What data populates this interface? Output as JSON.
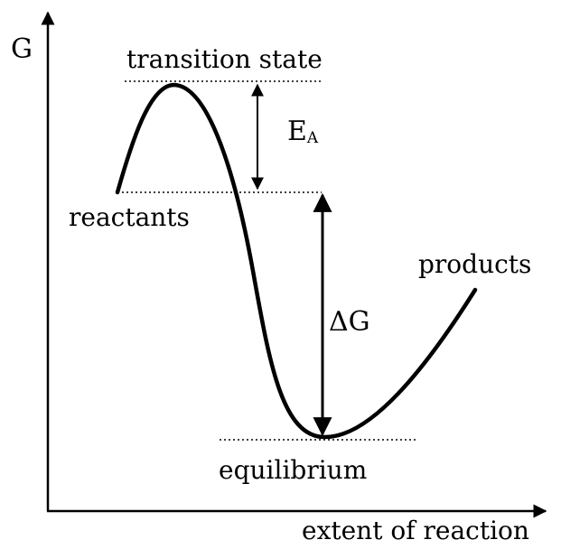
{
  "axes": {
    "y_label": "G",
    "x_label": "extent of reaction"
  },
  "annotations": {
    "transition_state": "transition state",
    "activation_energy_main": "E",
    "activation_energy_sub": "A",
    "reactants": "reactants",
    "products": "products",
    "delta_g": "ΔG",
    "equilibrium": "equilibrium"
  },
  "colors": {
    "ink": "#000000",
    "background": "#ffffff"
  }
}
